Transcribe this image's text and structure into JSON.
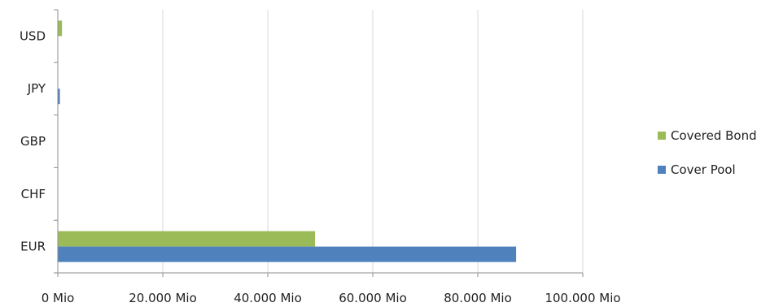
{
  "chart_data": {
    "type": "bar",
    "orientation": "horizontal",
    "categories": [
      "USD",
      "JPY",
      "GBP",
      "CHF",
      "EUR"
    ],
    "series": [
      {
        "name": "Covered Bond",
        "color": "#9bbb59",
        "values": [
          800,
          0,
          0,
          0,
          49000
        ]
      },
      {
        "name": "Cover Pool",
        "color": "#4f81bd",
        "values": [
          0,
          400,
          0,
          0,
          87300
        ]
      }
    ],
    "xlim": [
      0,
      100000
    ],
    "xticks": [
      {
        "value": 0,
        "label": "0 Mio"
      },
      {
        "value": 20000,
        "label": "20.000 Mio"
      },
      {
        "value": 40000,
        "label": "40.000 Mio"
      },
      {
        "value": 60000,
        "label": "60.000 Mio"
      },
      {
        "value": 80000,
        "label": "80.000 Mio"
      },
      {
        "value": 100000,
        "label": "100.000 Mio"
      }
    ],
    "grid": true,
    "legend_position": "right",
    "title": "",
    "xlabel": "",
    "ylabel": ""
  }
}
